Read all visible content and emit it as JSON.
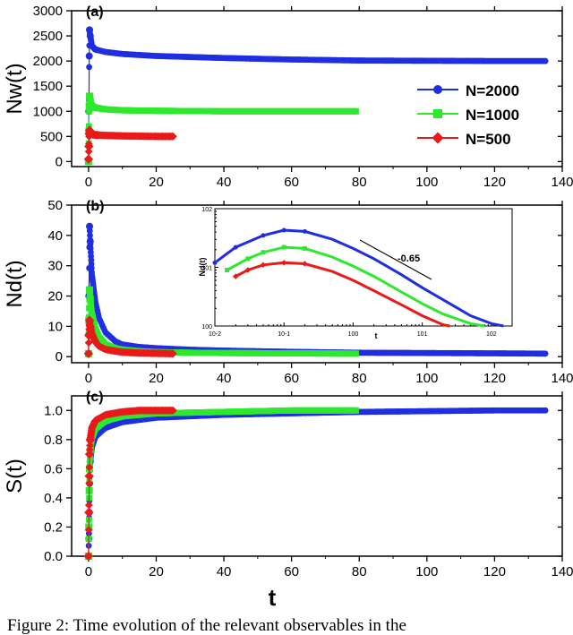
{
  "caption": "Figure 2: Time evolution of the relevant observables in the",
  "colors": {
    "N2000": "#1f2ee0",
    "N1000": "#2ee82e",
    "N500": "#e81a1a",
    "line": "#333333"
  },
  "chart_data": [
    {
      "type": "scatter",
      "panel_label": "(a)",
      "ylabel": "Nw(t)",
      "xlabel": "",
      "xlim": [
        -5,
        140
      ],
      "ylim": [
        -100,
        3000
      ],
      "xticks": [
        0,
        20,
        40,
        60,
        80,
        100,
        120,
        140
      ],
      "yticks": [
        0,
        500,
        1000,
        1500,
        2000,
        2500,
        3000
      ],
      "legend": {
        "position": "right",
        "entries": [
          "N=2000",
          "N=1000",
          "N=500"
        ]
      },
      "series": [
        {
          "name": "N=2000",
          "color": "#1f2ee0",
          "x": [
            0,
            0.1,
            0.2,
            0.3,
            0.5,
            1,
            2,
            5,
            10,
            20,
            40,
            60,
            80,
            100,
            120,
            135
          ],
          "y": [
            0,
            1000,
            2100,
            2620,
            2500,
            2300,
            2230,
            2180,
            2140,
            2100,
            2060,
            2030,
            2010,
            2005,
            2000,
            2000
          ]
        },
        {
          "name": "N=1000",
          "color": "#2ee82e",
          "x": [
            0,
            0.1,
            0.2,
            0.3,
            0.5,
            1,
            2,
            5,
            10,
            20,
            40,
            60,
            79
          ],
          "y": [
            0,
            600,
            1100,
            1300,
            1200,
            1100,
            1070,
            1040,
            1020,
            1010,
            1000,
            1000,
            1000
          ]
        },
        {
          "name": "N=500",
          "color": "#e81a1a",
          "x": [
            0,
            0.1,
            0.2,
            0.3,
            0.5,
            1,
            2,
            5,
            10,
            20,
            25
          ],
          "y": [
            50,
            300,
            550,
            620,
            570,
            540,
            530,
            520,
            510,
            500,
            500
          ]
        }
      ]
    },
    {
      "type": "scatter",
      "panel_label": "(b)",
      "ylabel": "Nd(t)",
      "xlabel": "",
      "xlim": [
        -5,
        140
      ],
      "ylim": [
        -2,
        50
      ],
      "xticks": [
        0,
        20,
        40,
        60,
        80,
        100,
        120,
        140
      ],
      "yticks": [
        0,
        10,
        20,
        30,
        40,
        50
      ],
      "series": [
        {
          "name": "N=2000",
          "color": "#1f2ee0",
          "x": [
            0,
            0.1,
            0.3,
            0.5,
            1,
            2,
            3,
            5,
            8,
            10,
            15,
            20,
            30,
            40,
            60,
            80,
            100,
            120,
            135
          ],
          "y": [
            1,
            20,
            43,
            38,
            27,
            18,
            13,
            8,
            5,
            4,
            3.2,
            2.8,
            2.3,
            2,
            1.6,
            1.3,
            1.2,
            1.1,
            1
          ]
        },
        {
          "name": "N=1000",
          "color": "#2ee82e",
          "x": [
            0,
            0.1,
            0.3,
            0.5,
            1,
            2,
            3,
            5,
            8,
            10,
            15,
            20,
            30,
            40,
            60,
            79
          ],
          "y": [
            1,
            12,
            22,
            19,
            14,
            9,
            6.5,
            4,
            2.7,
            2.3,
            1.8,
            1.5,
            1.3,
            1.2,
            1.1,
            1
          ]
        },
        {
          "name": "N=500",
          "color": "#e81a1a",
          "x": [
            0,
            0.1,
            0.3,
            0.5,
            1,
            2,
            3,
            5,
            8,
            10,
            15,
            20,
            25
          ],
          "y": [
            1,
            7,
            12,
            10,
            7.5,
            5,
            3.5,
            2.4,
            1.8,
            1.5,
            1.2,
            1.1,
            1
          ]
        }
      ]
    },
    {
      "type": "line",
      "panel_label": "inset",
      "scale": "log-log",
      "ylabel": "Nd(t)",
      "xlabel": "t",
      "xlim_exp": [
        -2,
        2.3
      ],
      "ylim_exp": [
        0,
        2
      ],
      "xtick_labels": [
        "10-2",
        "10-1",
        "100",
        "101",
        "102"
      ],
      "ytick_labels": [
        "100",
        "101",
        "102"
      ],
      "annotation": "-0.65",
      "series": [
        {
          "name": "N=2000",
          "color": "#1f2ee0",
          "x": [
            0.01,
            0.02,
            0.05,
            0.1,
            0.2,
            0.5,
            1,
            2,
            5,
            10,
            20,
            50,
            100,
            150
          ],
          "y": [
            12,
            22,
            35,
            43,
            41,
            30,
            21,
            14,
            7.5,
            4.5,
            2.8,
            1.5,
            1.1,
            1
          ]
        },
        {
          "name": "N=1000",
          "color": "#2ee82e",
          "x": [
            0.015,
            0.03,
            0.05,
            0.1,
            0.2,
            0.5,
            1,
            2,
            5,
            10,
            20,
            50,
            80
          ],
          "y": [
            9,
            14,
            18,
            22,
            21,
            15,
            10.5,
            7,
            3.8,
            2.4,
            1.6,
            1.1,
            1
          ]
        },
        {
          "name": "N=500",
          "color": "#e81a1a",
          "x": [
            0.02,
            0.03,
            0.05,
            0.1,
            0.2,
            0.5,
            1,
            2,
            5,
            10,
            20,
            25
          ],
          "y": [
            7,
            9,
            11,
            12,
            11.5,
            8.5,
            6,
            4,
            2.3,
            1.5,
            1.05,
            1
          ]
        }
      ]
    },
    {
      "type": "scatter",
      "panel_label": "(c)",
      "ylabel": "S(t)",
      "xlabel": "t",
      "xlim": [
        -5,
        140
      ],
      "ylim": [
        0,
        1.1
      ],
      "xticks": [
        0,
        20,
        40,
        60,
        80,
        100,
        120,
        140
      ],
      "yticks": [
        0.0,
        0.2,
        0.4,
        0.6,
        0.8,
        1.0
      ],
      "ytick_labels": [
        "0.0",
        "0.2",
        "0.4",
        "0.6",
        "0.8",
        "1.0"
      ],
      "series": [
        {
          "name": "N=2000",
          "color": "#1f2ee0",
          "x": [
            0,
            0.1,
            0.2,
            0.3,
            0.5,
            1,
            2,
            5,
            10,
            20,
            40,
            60,
            80,
            100,
            120,
            135
          ],
          "y": [
            0,
            0.12,
            0.3,
            0.5,
            0.65,
            0.75,
            0.82,
            0.88,
            0.92,
            0.95,
            0.97,
            0.98,
            0.99,
            0.995,
            1.0,
            1.0
          ]
        },
        {
          "name": "N=1000",
          "color": "#2ee82e",
          "x": [
            0,
            0.1,
            0.2,
            0.3,
            0.5,
            1,
            2,
            5,
            10,
            20,
            40,
            60,
            79
          ],
          "y": [
            0,
            0.2,
            0.45,
            0.6,
            0.72,
            0.82,
            0.88,
            0.93,
            0.96,
            0.98,
            0.99,
            1.0,
            1.0
          ]
        },
        {
          "name": "N=500",
          "color": "#e81a1a",
          "x": [
            0,
            0.1,
            0.2,
            0.3,
            0.5,
            1,
            2,
            5,
            10,
            15,
            20,
            25
          ],
          "y": [
            0,
            0.3,
            0.55,
            0.7,
            0.8,
            0.88,
            0.93,
            0.97,
            0.99,
            1.0,
            1.0,
            1.0
          ]
        }
      ]
    }
  ]
}
